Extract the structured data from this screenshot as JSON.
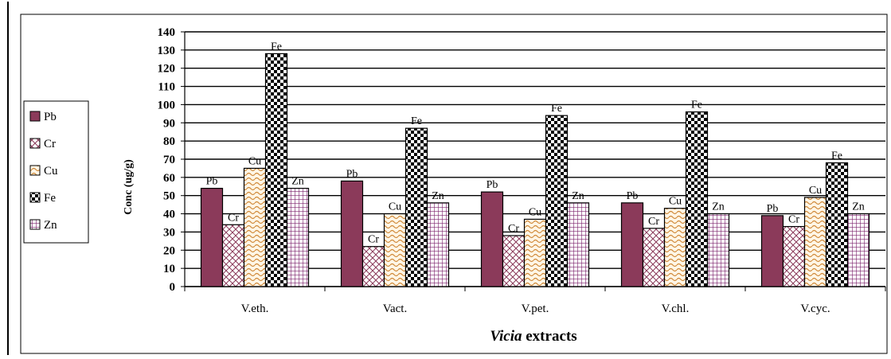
{
  "chart_data": {
    "type": "bar",
    "title": "",
    "xlabel": "Vicia extracts",
    "xlabel_italic_part": "Vicia",
    "xlabel_rest": " extracts",
    "ylabel": "Conc (ug/g)",
    "ylim": [
      0,
      140
    ],
    "yticks": [
      0,
      10,
      20,
      30,
      40,
      50,
      60,
      70,
      80,
      90,
      100,
      110,
      120,
      130,
      140
    ],
    "grid": true,
    "legend_position": "left",
    "categories": [
      "V.eth.",
      "Vact.",
      "V.pet.",
      "V.chl.",
      "V.cyc."
    ],
    "series": [
      {
        "name": "Pb",
        "values": [
          54,
          58,
          52,
          46,
          39
        ],
        "pattern": "solid",
        "color": "#8b3a5a"
      },
      {
        "name": "Cr",
        "values": [
          34,
          22,
          28,
          32,
          33
        ],
        "pattern": "crosshatch",
        "color": "#8b3a5a"
      },
      {
        "name": "Cu",
        "values": [
          65,
          40,
          37,
          43,
          49
        ],
        "pattern": "wave",
        "color": "#d08a3a"
      },
      {
        "name": "Fe",
        "values": [
          128,
          87,
          94,
          96,
          68
        ],
        "pattern": "checker",
        "color": "#000000"
      },
      {
        "name": "Zn",
        "values": [
          54,
          46,
          46,
          40,
          40
        ],
        "pattern": "grid",
        "color": "#7a1f6a"
      }
    ],
    "bar_labels": [
      [
        "Pb",
        "Cr",
        "Cu",
        "Fe",
        "Zn"
      ],
      [
        "Pb",
        "Cr",
        "Cu",
        "Fe",
        "Zn"
      ],
      [
        "Pb",
        "Cr",
        "Cu",
        "Fe",
        "Zn"
      ],
      [
        "Pb",
        "Cr",
        "Cu",
        "Fe",
        "Zn"
      ],
      [
        "Pb",
        "Cr",
        "Cu",
        "Fe",
        "Zn"
      ]
    ]
  }
}
